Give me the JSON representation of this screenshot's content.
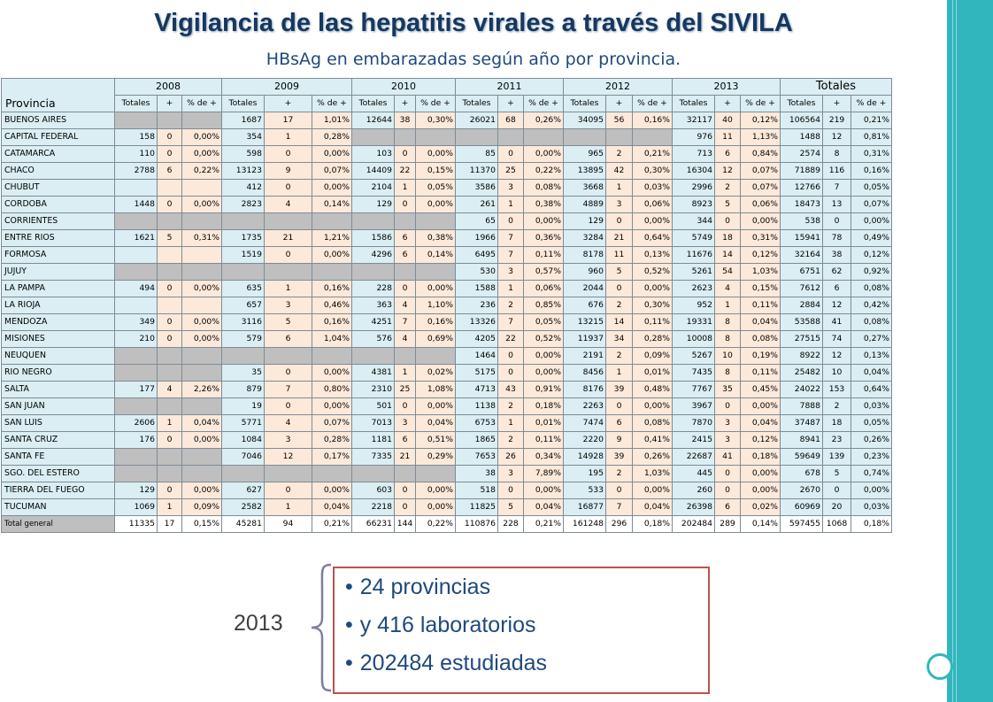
{
  "title": "Vigilancia de las hepatitis virales a través del SIVILA",
  "subtitle": "HBsAg en embarazadas según año por provincia.",
  "table": {
    "province_header": "Provincia",
    "years": [
      "2008",
      "2009",
      "2010",
      "2011",
      "2012",
      "2013",
      "Totales"
    ],
    "subheaders": [
      "Totales",
      "+",
      "% de +"
    ],
    "rows": [
      {
        "name": "BUENOS AIRES",
        "cells": [
          null,
          null,
          null,
          "1687",
          "17",
          "1,01%",
          "12644",
          "38",
          "0,30%",
          "26021",
          "68",
          "0,26%",
          "34095",
          "56",
          "0,16%",
          "32117",
          "40",
          "0,12%",
          "106564",
          "219",
          "0,21%"
        ]
      },
      {
        "name": "CAPITAL FEDERAL",
        "cells": [
          "158",
          "0",
          "0,00%",
          "354",
          "1",
          "0,28%",
          null,
          null,
          null,
          null,
          null,
          null,
          null,
          null,
          null,
          "976",
          "11",
          "1,13%",
          "1488",
          "12",
          "0,81%"
        ]
      },
      {
        "name": "CATAMARCA",
        "cells": [
          "110",
          "0",
          "0,00%",
          "598",
          "0",
          "0,00%",
          "103",
          "0",
          "0,00%",
          "85",
          "0",
          "0,00%",
          "965",
          "2",
          "0,21%",
          "713",
          "6",
          "0,84%",
          "2574",
          "8",
          "0,31%"
        ]
      },
      {
        "name": "CHACO",
        "cells": [
          "2788",
          "6",
          "0,22%",
          "13123",
          "9",
          "0,07%",
          "14409",
          "22",
          "0,15%",
          "11370",
          "25",
          "0,22%",
          "13895",
          "42",
          "0,30%",
          "16304",
          "12",
          "0,07%",
          "71889",
          "116",
          "0,16%"
        ]
      },
      {
        "name": "CHUBUT",
        "cells": [
          "",
          "",
          "",
          "412",
          "0",
          "0,00%",
          "2104",
          "1",
          "0,05%",
          "3586",
          "3",
          "0,08%",
          "3668",
          "1",
          "0,03%",
          "2996",
          "2",
          "0,07%",
          "12766",
          "7",
          "0,05%"
        ]
      },
      {
        "name": "CORDOBA",
        "cells": [
          "1448",
          "0",
          "0,00%",
          "2823",
          "4",
          "0,14%",
          "129",
          "0",
          "0,00%",
          "261",
          "1",
          "0,38%",
          "4889",
          "3",
          "0,06%",
          "8923",
          "5",
          "0,06%",
          "18473",
          "13",
          "0,07%"
        ]
      },
      {
        "name": "CORRIENTES",
        "cells": [
          null,
          null,
          null,
          null,
          null,
          null,
          null,
          null,
          null,
          "65",
          "0",
          "0,00%",
          "129",
          "0",
          "0,00%",
          "344",
          "0",
          "0,00%",
          "538",
          "0",
          "0,00%"
        ]
      },
      {
        "name": "ENTRE RIOS",
        "cells": [
          "1621",
          "5",
          "0,31%",
          "1735",
          "21",
          "1,21%",
          "1586",
          "6",
          "0,38%",
          "1966",
          "7",
          "0,36%",
          "3284",
          "21",
          "0,64%",
          "5749",
          "18",
          "0,31%",
          "15941",
          "78",
          "0,49%"
        ]
      },
      {
        "name": "FORMOSA",
        "cells": [
          "",
          "",
          "",
          "1519",
          "0",
          "0,00%",
          "4296",
          "6",
          "0,14%",
          "6495",
          "7",
          "0,11%",
          "8178",
          "11",
          "0,13%",
          "11676",
          "14",
          "0,12%",
          "32164",
          "38",
          "0,12%"
        ]
      },
      {
        "name": "JUJUY",
        "cells": [
          null,
          null,
          null,
          null,
          null,
          null,
          null,
          null,
          null,
          "530",
          "3",
          "0,57%",
          "960",
          "5",
          "0,52%",
          "5261",
          "54",
          "1,03%",
          "6751",
          "62",
          "0,92%"
        ]
      },
      {
        "name": "LA PAMPA",
        "cells": [
          "494",
          "0",
          "0,00%",
          "635",
          "1",
          "0,16%",
          "228",
          "0",
          "0,00%",
          "1588",
          "1",
          "0,06%",
          "2044",
          "0",
          "0,00%",
          "2623",
          "4",
          "0,15%",
          "7612",
          "6",
          "0,08%"
        ]
      },
      {
        "name": "LA RIOJA",
        "cells": [
          "",
          "",
          "",
          "657",
          "3",
          "0,46%",
          "363",
          "4",
          "1,10%",
          "236",
          "2",
          "0,85%",
          "676",
          "2",
          "0,30%",
          "952",
          "1",
          "0,11%",
          "2884",
          "12",
          "0,42%"
        ]
      },
      {
        "name": "MENDOZA",
        "cells": [
          "349",
          "0",
          "0,00%",
          "3116",
          "5",
          "0,16%",
          "4251",
          "7",
          "0,16%",
          "13326",
          "7",
          "0,05%",
          "13215",
          "14",
          "0,11%",
          "19331",
          "8",
          "0,04%",
          "53588",
          "41",
          "0,08%"
        ]
      },
      {
        "name": "MISIONES",
        "cells": [
          "210",
          "0",
          "0,00%",
          "579",
          "6",
          "1,04%",
          "576",
          "4",
          "0,69%",
          "4205",
          "22",
          "0,52%",
          "11937",
          "34",
          "0,28%",
          "10008",
          "8",
          "0,08%",
          "27515",
          "74",
          "0,27%"
        ]
      },
      {
        "name": "NEUQUEN",
        "cells": [
          null,
          null,
          null,
          null,
          null,
          null,
          null,
          null,
          null,
          "1464",
          "0",
          "0,00%",
          "2191",
          "2",
          "0,09%",
          "5267",
          "10",
          "0,19%",
          "8922",
          "12",
          "0,13%"
        ]
      },
      {
        "name": "RIO NEGRO",
        "cells": [
          null,
          null,
          null,
          "35",
          "0",
          "0,00%",
          "4381",
          "1",
          "0,02%",
          "5175",
          "0",
          "0,00%",
          "8456",
          "1",
          "0,01%",
          "7435",
          "8",
          "0,11%",
          "25482",
          "10",
          "0,04%"
        ]
      },
      {
        "name": "SALTA",
        "cells": [
          "177",
          "4",
          "2,26%",
          "879",
          "7",
          "0,80%",
          "2310",
          "25",
          "1,08%",
          "4713",
          "43",
          "0,91%",
          "8176",
          "39",
          "0,48%",
          "7767",
          "35",
          "0,45%",
          "24022",
          "153",
          "0,64%"
        ]
      },
      {
        "name": "SAN JUAN",
        "cells": [
          null,
          null,
          null,
          "19",
          "0",
          "0,00%",
          "501",
          "0",
          "0,00%",
          "1138",
          "2",
          "0,18%",
          "2263",
          "0",
          "0,00%",
          "3967",
          "0",
          "0,00%",
          "7888",
          "2",
          "0,03%"
        ]
      },
      {
        "name": "SAN LUIS",
        "cells": [
          "2606",
          "1",
          "0,04%",
          "5771",
          "4",
          "0,07%",
          "7013",
          "3",
          "0,04%",
          "6753",
          "1",
          "0,01%",
          "7474",
          "6",
          "0,08%",
          "7870",
          "3",
          "0,04%",
          "37487",
          "18",
          "0,05%"
        ]
      },
      {
        "name": "SANTA CRUZ",
        "cells": [
          "176",
          "0",
          "0,00%",
          "1084",
          "3",
          "0,28%",
          "1181",
          "6",
          "0,51%",
          "1865",
          "2",
          "0,11%",
          "2220",
          "9",
          "0,41%",
          "2415",
          "3",
          "0,12%",
          "8941",
          "23",
          "0,26%"
        ]
      },
      {
        "name": "SANTA FE",
        "cells": [
          null,
          null,
          null,
          "7046",
          "12",
          "0,17%",
          "7335",
          "21",
          "0,29%",
          "7653",
          "26",
          "0,34%",
          "14928",
          "39",
          "0,26%",
          "22687",
          "41",
          "0,18%",
          "59649",
          "139",
          "0,23%"
        ]
      },
      {
        "name": "SGO. DEL ESTERO",
        "cells": [
          null,
          null,
          null,
          null,
          null,
          null,
          null,
          null,
          null,
          "38",
          "3",
          "7,89%",
          "195",
          "2",
          "1,03%",
          "445",
          "0",
          "0,00%",
          "678",
          "5",
          "0,74%"
        ]
      },
      {
        "name": "TIERRA DEL FUEGO",
        "cells": [
          "129",
          "0",
          "0,00%",
          "627",
          "0",
          "0,00%",
          "603",
          "0",
          "0,00%",
          "518",
          "0",
          "0,00%",
          "533",
          "0",
          "0,00%",
          "260",
          "0",
          "0,00%",
          "2670",
          "0",
          "0,00%"
        ]
      },
      {
        "name": "TUCUMAN",
        "cells": [
          "1069",
          "1",
          "0,09%",
          "2582",
          "1",
          "0,04%",
          "2218",
          "0",
          "0,00%",
          "11825",
          "5",
          "0,04%",
          "16877",
          "7",
          "0,04%",
          "26398",
          "6",
          "0,02%",
          "60969",
          "20",
          "0,03%"
        ]
      }
    ],
    "total": {
      "name": "Total general",
      "cells": [
        "11335",
        "17",
        "0,15%",
        "45281",
        "94",
        "0,21%",
        "66231",
        "144",
        "0,22%",
        "110876",
        "228",
        "0,21%",
        "161248",
        "296",
        "0,18%",
        "202484",
        "289",
        "0,14%",
        "597455",
        "1068",
        "0,18%"
      ]
    }
  },
  "callout": {
    "year": "2013",
    "bullets": [
      "24 provincias",
      "y 416 laboratorios",
      "202484 estudiadas"
    ]
  }
}
